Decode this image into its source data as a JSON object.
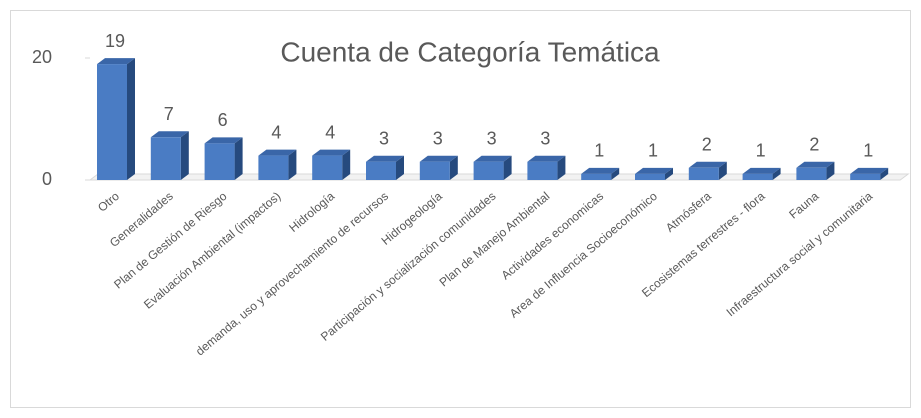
{
  "chart_data": {
    "type": "bar",
    "title": "Cuenta de Categoría Temática",
    "categories": [
      "Otro",
      "Generalidades",
      "Plan de Gestión de Riesgo",
      "Evaluación Ambiental (impactos)",
      "Hidrología",
      "demanda, uso y aprovechamiento de recursos",
      "Hidrogeología",
      "Participación y socialización comunidades",
      "Plan de Manejo Ambiental",
      "Actividades economicas",
      "Area de Influencia Socioeconómico",
      "Atmósfera",
      "Ecosistemas terrestres - flora",
      "Fauna",
      "Infraestructura social y comunitaria"
    ],
    "values": [
      19,
      7,
      6,
      4,
      4,
      3,
      3,
      3,
      3,
      1,
      1,
      2,
      1,
      2,
      1
    ],
    "color": "#4a7cc4",
    "ylim": [
      0,
      20
    ],
    "yticks": [
      0,
      20
    ],
    "grid": false
  }
}
